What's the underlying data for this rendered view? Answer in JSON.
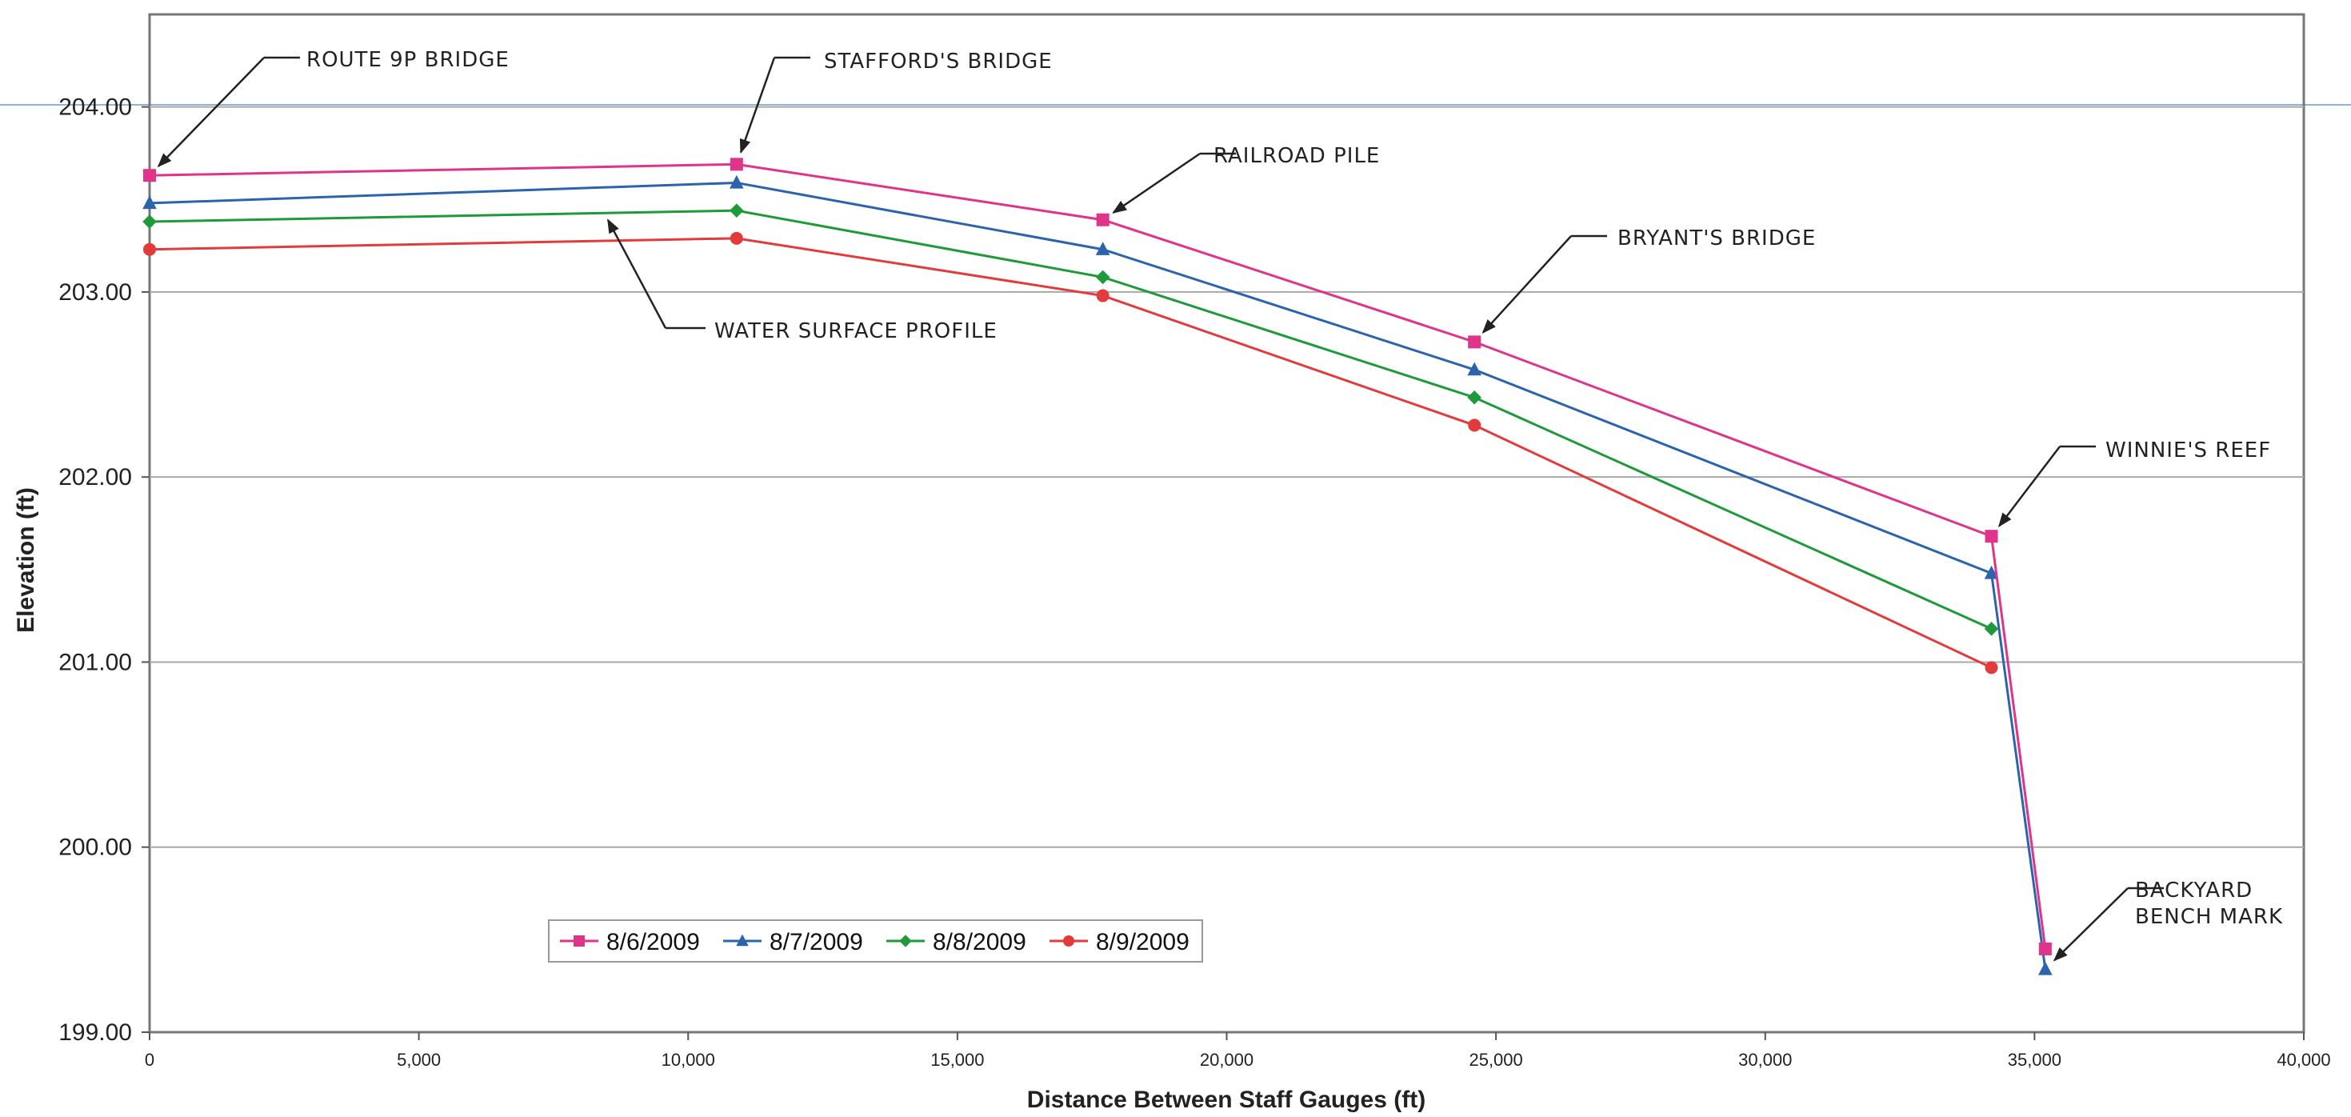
{
  "chart_data": {
    "type": "line",
    "title": "",
    "xlabel": "Distance Between Staff Gauges (ft)",
    "ylabel": "Elevation (ft)",
    "xlim": [
      0,
      40000
    ],
    "ylim": [
      199.0,
      204.5
    ],
    "x_ticks": [
      0,
      5000,
      10000,
      15000,
      20000,
      25000,
      30000,
      35000,
      40000
    ],
    "x_tick_labels": [
      "0",
      "5,000",
      "10,000",
      "15,000",
      "20,000",
      "25,000",
      "30,000",
      "35,000",
      "40,000"
    ],
    "y_ticks": [
      199,
      200,
      201,
      202,
      203,
      204
    ],
    "y_tick_labels": [
      "199.00",
      "200.00",
      "201.00",
      "202.00",
      "203.00",
      "204.00"
    ],
    "grid": "horizontal",
    "legend_position": "bottom-center",
    "series": [
      {
        "name": "8/6/2009",
        "color": "#e0338a",
        "marker": "square",
        "points": [
          [
            0,
            203.63
          ],
          [
            10900,
            203.69
          ],
          [
            17700,
            203.39
          ],
          [
            24600,
            202.73
          ],
          [
            34200,
            201.68
          ],
          [
            35200,
            199.45
          ]
        ]
      },
      {
        "name": "8/7/2009",
        "color": "#2b64ad",
        "marker": "triangle",
        "points": [
          [
            0,
            203.48
          ],
          [
            10900,
            203.59
          ],
          [
            17700,
            203.23
          ],
          [
            24600,
            202.58
          ],
          [
            34200,
            201.48
          ],
          [
            35200,
            199.34
          ]
        ]
      },
      {
        "name": "8/8/2009",
        "color": "#1f9a3a",
        "marker": "diamond",
        "points": [
          [
            0,
            203.38
          ],
          [
            10900,
            203.44
          ],
          [
            17700,
            203.08
          ],
          [
            24600,
            202.43
          ],
          [
            34200,
            201.18
          ]
        ]
      },
      {
        "name": "8/9/2009",
        "color": "#e33b3b",
        "marker": "circle",
        "points": [
          [
            0,
            203.23
          ],
          [
            10900,
            203.29
          ],
          [
            17700,
            202.98
          ],
          [
            24600,
            202.28
          ],
          [
            34200,
            200.97
          ]
        ]
      }
    ],
    "annotations": [
      {
        "id": "route-9p-bridge",
        "lines": [
          "ROUTE 9P BRIDGE"
        ]
      },
      {
        "id": "staffords-bridge",
        "lines": [
          "STAFFORD'S BRIDGE"
        ]
      },
      {
        "id": "railroad-pile",
        "lines": [
          "RAILROAD PILE"
        ]
      },
      {
        "id": "bryants-bridge",
        "lines": [
          "BRYANT'S BRIDGE"
        ]
      },
      {
        "id": "winnies-reef",
        "lines": [
          "WINNIE'S REEF"
        ]
      },
      {
        "id": "backyard-bench-mark",
        "lines": [
          "BACKYARD",
          "BENCH MARK"
        ]
      },
      {
        "id": "water-surface-profile",
        "lines": [
          "WATER SURFACE PROFILE"
        ]
      }
    ]
  }
}
